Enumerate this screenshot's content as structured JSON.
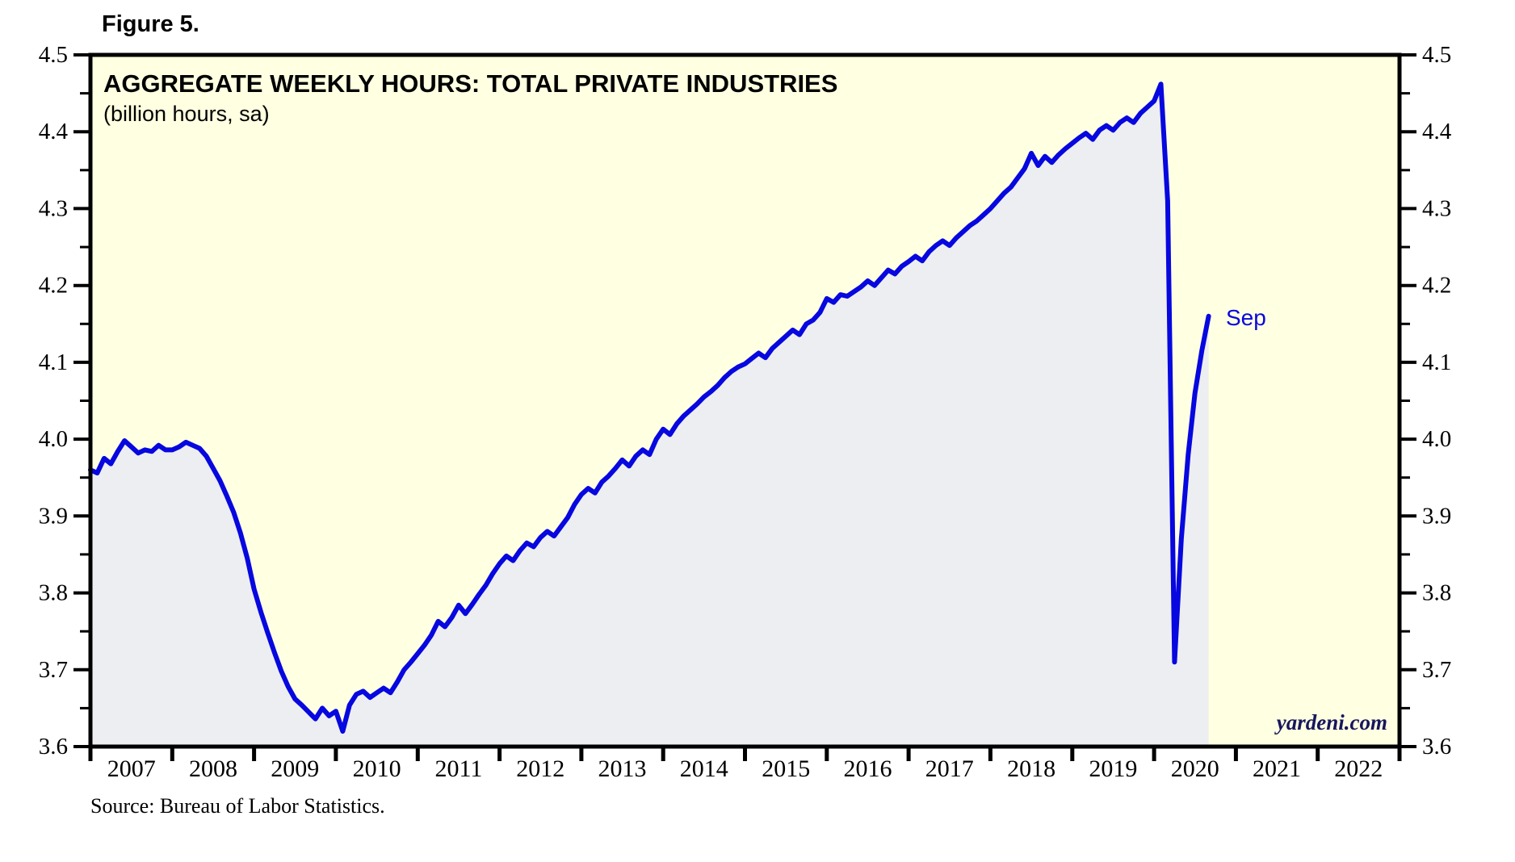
{
  "figure_label": "Figure 5.",
  "source_note": "Source: Bureau of Labor Statistics.",
  "watermark": "yardeni.com",
  "chart_data": {
    "type": "area",
    "title": "AGGREGATE WEEKLY HOURS: TOTAL PRIVATE INDUSTRIES",
    "subtitle": "(billion hours, sa)",
    "ylabel": "billion hours",
    "ylim": [
      3.6,
      4.5
    ],
    "y_ticks": [
      3.6,
      3.7,
      3.8,
      3.9,
      4.0,
      4.1,
      4.2,
      4.3,
      4.4,
      4.5
    ],
    "y_minor_step": 0.05,
    "x_years": [
      "2007",
      "2008",
      "2009",
      "2010",
      "2011",
      "2012",
      "2013",
      "2014",
      "2015",
      "2016",
      "2017",
      "2018",
      "2019",
      "2020",
      "2021",
      "2022"
    ],
    "grid": "off",
    "legend": "none",
    "last_point_label": "Sep",
    "colors": {
      "line": "#0707e0",
      "fill": "#edeef1",
      "plot_bg": "#ffffe1",
      "axis": "#000000",
      "watermark": "#16165e"
    },
    "series": [
      {
        "name": "Aggregate weekly hours, total private industries",
        "start": "2007-01",
        "frequency": "monthly",
        "end_label": "Sep 2020",
        "values": [
          3.96,
          3.956,
          3.975,
          3.968,
          3.984,
          3.998,
          3.99,
          3.982,
          3.986,
          3.984,
          3.992,
          3.986,
          3.986,
          3.99,
          3.996,
          3.992,
          3.988,
          3.978,
          3.962,
          3.946,
          3.926,
          3.905,
          3.878,
          3.845,
          3.805,
          3.775,
          3.748,
          3.722,
          3.698,
          3.678,
          3.662,
          3.654,
          3.645,
          3.636,
          3.65,
          3.64,
          3.646,
          3.62,
          3.654,
          3.668,
          3.672,
          3.664,
          3.67,
          3.676,
          3.67,
          3.684,
          3.7,
          3.71,
          3.721,
          3.732,
          3.745,
          3.763,
          3.756,
          3.768,
          3.784,
          3.773,
          3.785,
          3.798,
          3.81,
          3.825,
          3.838,
          3.848,
          3.842,
          3.855,
          3.865,
          3.86,
          3.872,
          3.88,
          3.874,
          3.886,
          3.898,
          3.915,
          3.928,
          3.936,
          3.93,
          3.944,
          3.952,
          3.962,
          3.973,
          3.965,
          3.978,
          3.986,
          3.98,
          4.0,
          4.013,
          4.006,
          4.02,
          4.03,
          4.038,
          4.046,
          4.055,
          4.062,
          4.07,
          4.08,
          4.088,
          4.094,
          4.098,
          4.105,
          4.112,
          4.106,
          4.118,
          4.126,
          4.134,
          4.142,
          4.136,
          4.15,
          4.155,
          4.165,
          4.183,
          4.178,
          4.188,
          4.186,
          4.192,
          4.198,
          4.206,
          4.2,
          4.21,
          4.22,
          4.215,
          4.225,
          4.231,
          4.238,
          4.232,
          4.244,
          4.252,
          4.258,
          4.252,
          4.262,
          4.27,
          4.278,
          4.284,
          4.292,
          4.3,
          4.31,
          4.32,
          4.328,
          4.34,
          4.352,
          4.372,
          4.356,
          4.368,
          4.36,
          4.37,
          4.378,
          4.385,
          4.392,
          4.398,
          4.39,
          4.402,
          4.408,
          4.402,
          4.412,
          4.418,
          4.412,
          4.424,
          4.432,
          4.44,
          4.462,
          4.31,
          3.71,
          3.87,
          3.98,
          4.06,
          4.115,
          4.16
        ]
      }
    ]
  }
}
